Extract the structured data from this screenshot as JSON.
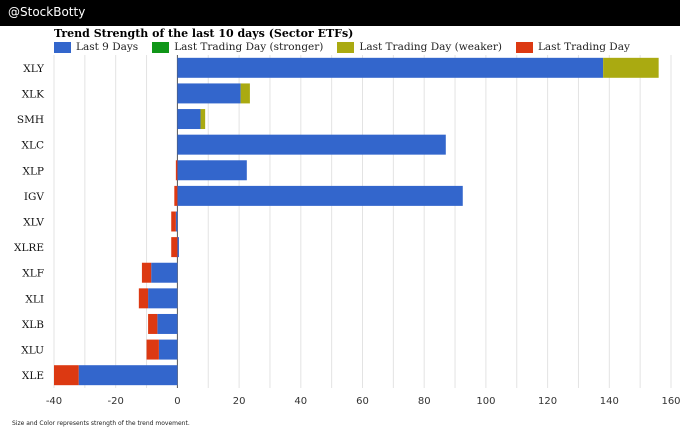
{
  "header": {
    "handle": "@StockBotty"
  },
  "colors": {
    "last9": "#3366cc",
    "stronger": "#109618",
    "weaker": "#aaaa11",
    "lastDay": "#dc3912"
  },
  "chart_data": {
    "type": "bar",
    "orientation": "horizontal",
    "stacked": true,
    "title": "Trend Strength of the last 10 days (Sector ETFs)",
    "legend": [
      {
        "name": "Last 9 Days",
        "color_key": "last9"
      },
      {
        "name": "Last Trading Day (stronger)",
        "color_key": "stronger"
      },
      {
        "name": "Last Trading Day (weaker)",
        "color_key": "weaker"
      },
      {
        "name": "Last Trading Day",
        "color_key": "lastDay"
      }
    ],
    "legend_position": "top",
    "categories": [
      "XLY",
      "XLK",
      "SMH",
      "XLC",
      "XLP",
      "IGV",
      "XLV",
      "XLRE",
      "XLF",
      "XLI",
      "XLB",
      "XLU",
      "XLE"
    ],
    "series": [
      {
        "name": "Last 9 Days",
        "values": [
          138,
          20.5,
          7.5,
          87,
          22.5,
          92.5,
          -0.5,
          0.5,
          -8.5,
          -9.5,
          -6.5,
          -6,
          -32
        ]
      },
      {
        "name": "Last Trading Day (stronger)",
        "values": [
          0,
          0,
          0,
          0,
          0,
          0,
          0,
          0,
          0,
          0,
          0,
          0,
          0
        ]
      },
      {
        "name": "Last Trading Day (weaker)",
        "values": [
          18,
          3,
          1.5,
          0,
          0,
          0,
          0,
          0,
          0,
          0,
          0,
          0,
          0
        ]
      },
      {
        "name": "Last Trading Day",
        "values": [
          0,
          0,
          0,
          0,
          -0.5,
          -1,
          -1.5,
          -2,
          -3,
          -3,
          -3,
          -4,
          -8
        ]
      }
    ],
    "xlim": [
      -40,
      160
    ],
    "xticks": [
      -40,
      -20,
      0,
      20,
      40,
      60,
      80,
      100,
      120,
      140,
      160
    ],
    "grid": true,
    "xlabel": "",
    "ylabel": ""
  },
  "footnote": "Size and Color represents strength of the trend movement."
}
